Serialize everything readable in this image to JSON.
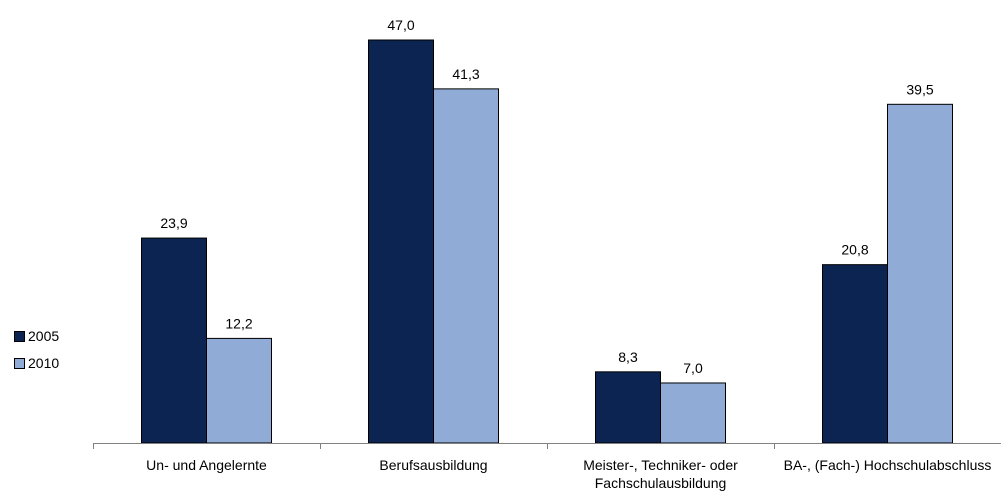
{
  "chart_data": {
    "type": "bar",
    "categories": [
      [
        "Un- und Angelernte"
      ],
      [
        "Berufsausbildung"
      ],
      [
        "Meister-, Techniker- oder",
        "Fachschulausbildung"
      ],
      [
        "BA-, (Fach-) Hochschulabschluss"
      ]
    ],
    "series": [
      {
        "name": "2005",
        "values": [
          23.9,
          47.0,
          8.3,
          20.8
        ],
        "labels": [
          "23,9",
          "47,0",
          "8,3",
          "20,8"
        ],
        "color": "#0b2451"
      },
      {
        "name": "2010",
        "values": [
          12.2,
          41.3,
          7.0,
          39.5
        ],
        "labels": [
          "12,2",
          "41,3",
          "7,0",
          "39,5"
        ],
        "color": "#90acd6"
      }
    ],
    "ylim": [
      0,
      47.0
    ],
    "grid": false,
    "legend_position": "left"
  }
}
